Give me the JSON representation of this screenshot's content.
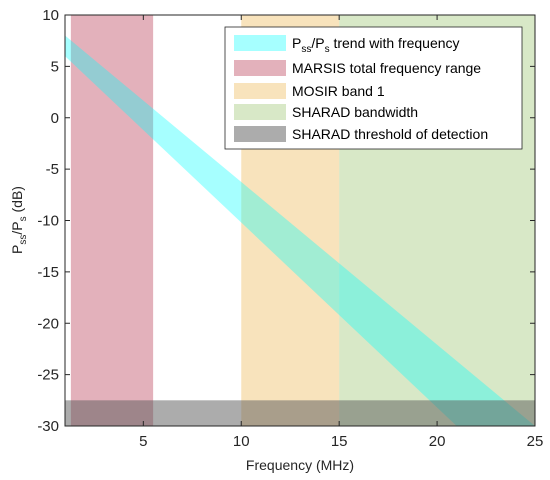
{
  "chart_data": {
    "type": "area",
    "xlabel": "Frequency (MHz)",
    "ylabel": {
      "base": "P",
      "sub1": "ss",
      "slash": "/P",
      "sub2": "s",
      "unit": " (dB)"
    },
    "xlim": [
      1,
      25
    ],
    "ylim": [
      -30,
      10
    ],
    "xticks": [
      5,
      10,
      15,
      20,
      25
    ],
    "yticks": [
      10,
      5,
      0,
      -5,
      -10,
      -15,
      -20,
      -25,
      -30
    ],
    "grid": false,
    "legend_position": "top-right",
    "series": [
      {
        "name": "P_ss/P_s trend with frequency",
        "label_parts": {
          "p1": "P",
          "s1": "ss",
          "p2": "/P",
          "s2": "s",
          "rest": " trend with frequency"
        },
        "kind": "trend_band",
        "color": "#00ffff",
        "opacity": 0.35,
        "upper": [
          [
            1,
            8
          ],
          [
            25,
            -30
          ]
        ],
        "lower": [
          [
            1,
            6
          ],
          [
            21,
            -30
          ]
        ]
      },
      {
        "name": "MARSIS total frequency range",
        "kind": "vertical_band",
        "x_range": [
          1.3,
          5.5
        ],
        "color": "#c86478",
        "opacity": 0.5
      },
      {
        "name": "MOSIR band 1",
        "kind": "vertical_band",
        "x_range": [
          10,
          15
        ],
        "color": "#f0c06a",
        "opacity": 0.45
      },
      {
        "name": "SHARAD bandwidth",
        "kind": "vertical_band",
        "x_range": [
          15,
          25
        ],
        "color": "#a8cc82",
        "opacity": 0.45
      },
      {
        "name": "SHARAD threshold of detection",
        "kind": "horizontal_band",
        "y_range": [
          -30,
          -27.5
        ],
        "color": "#595959",
        "opacity": 0.5
      }
    ]
  }
}
